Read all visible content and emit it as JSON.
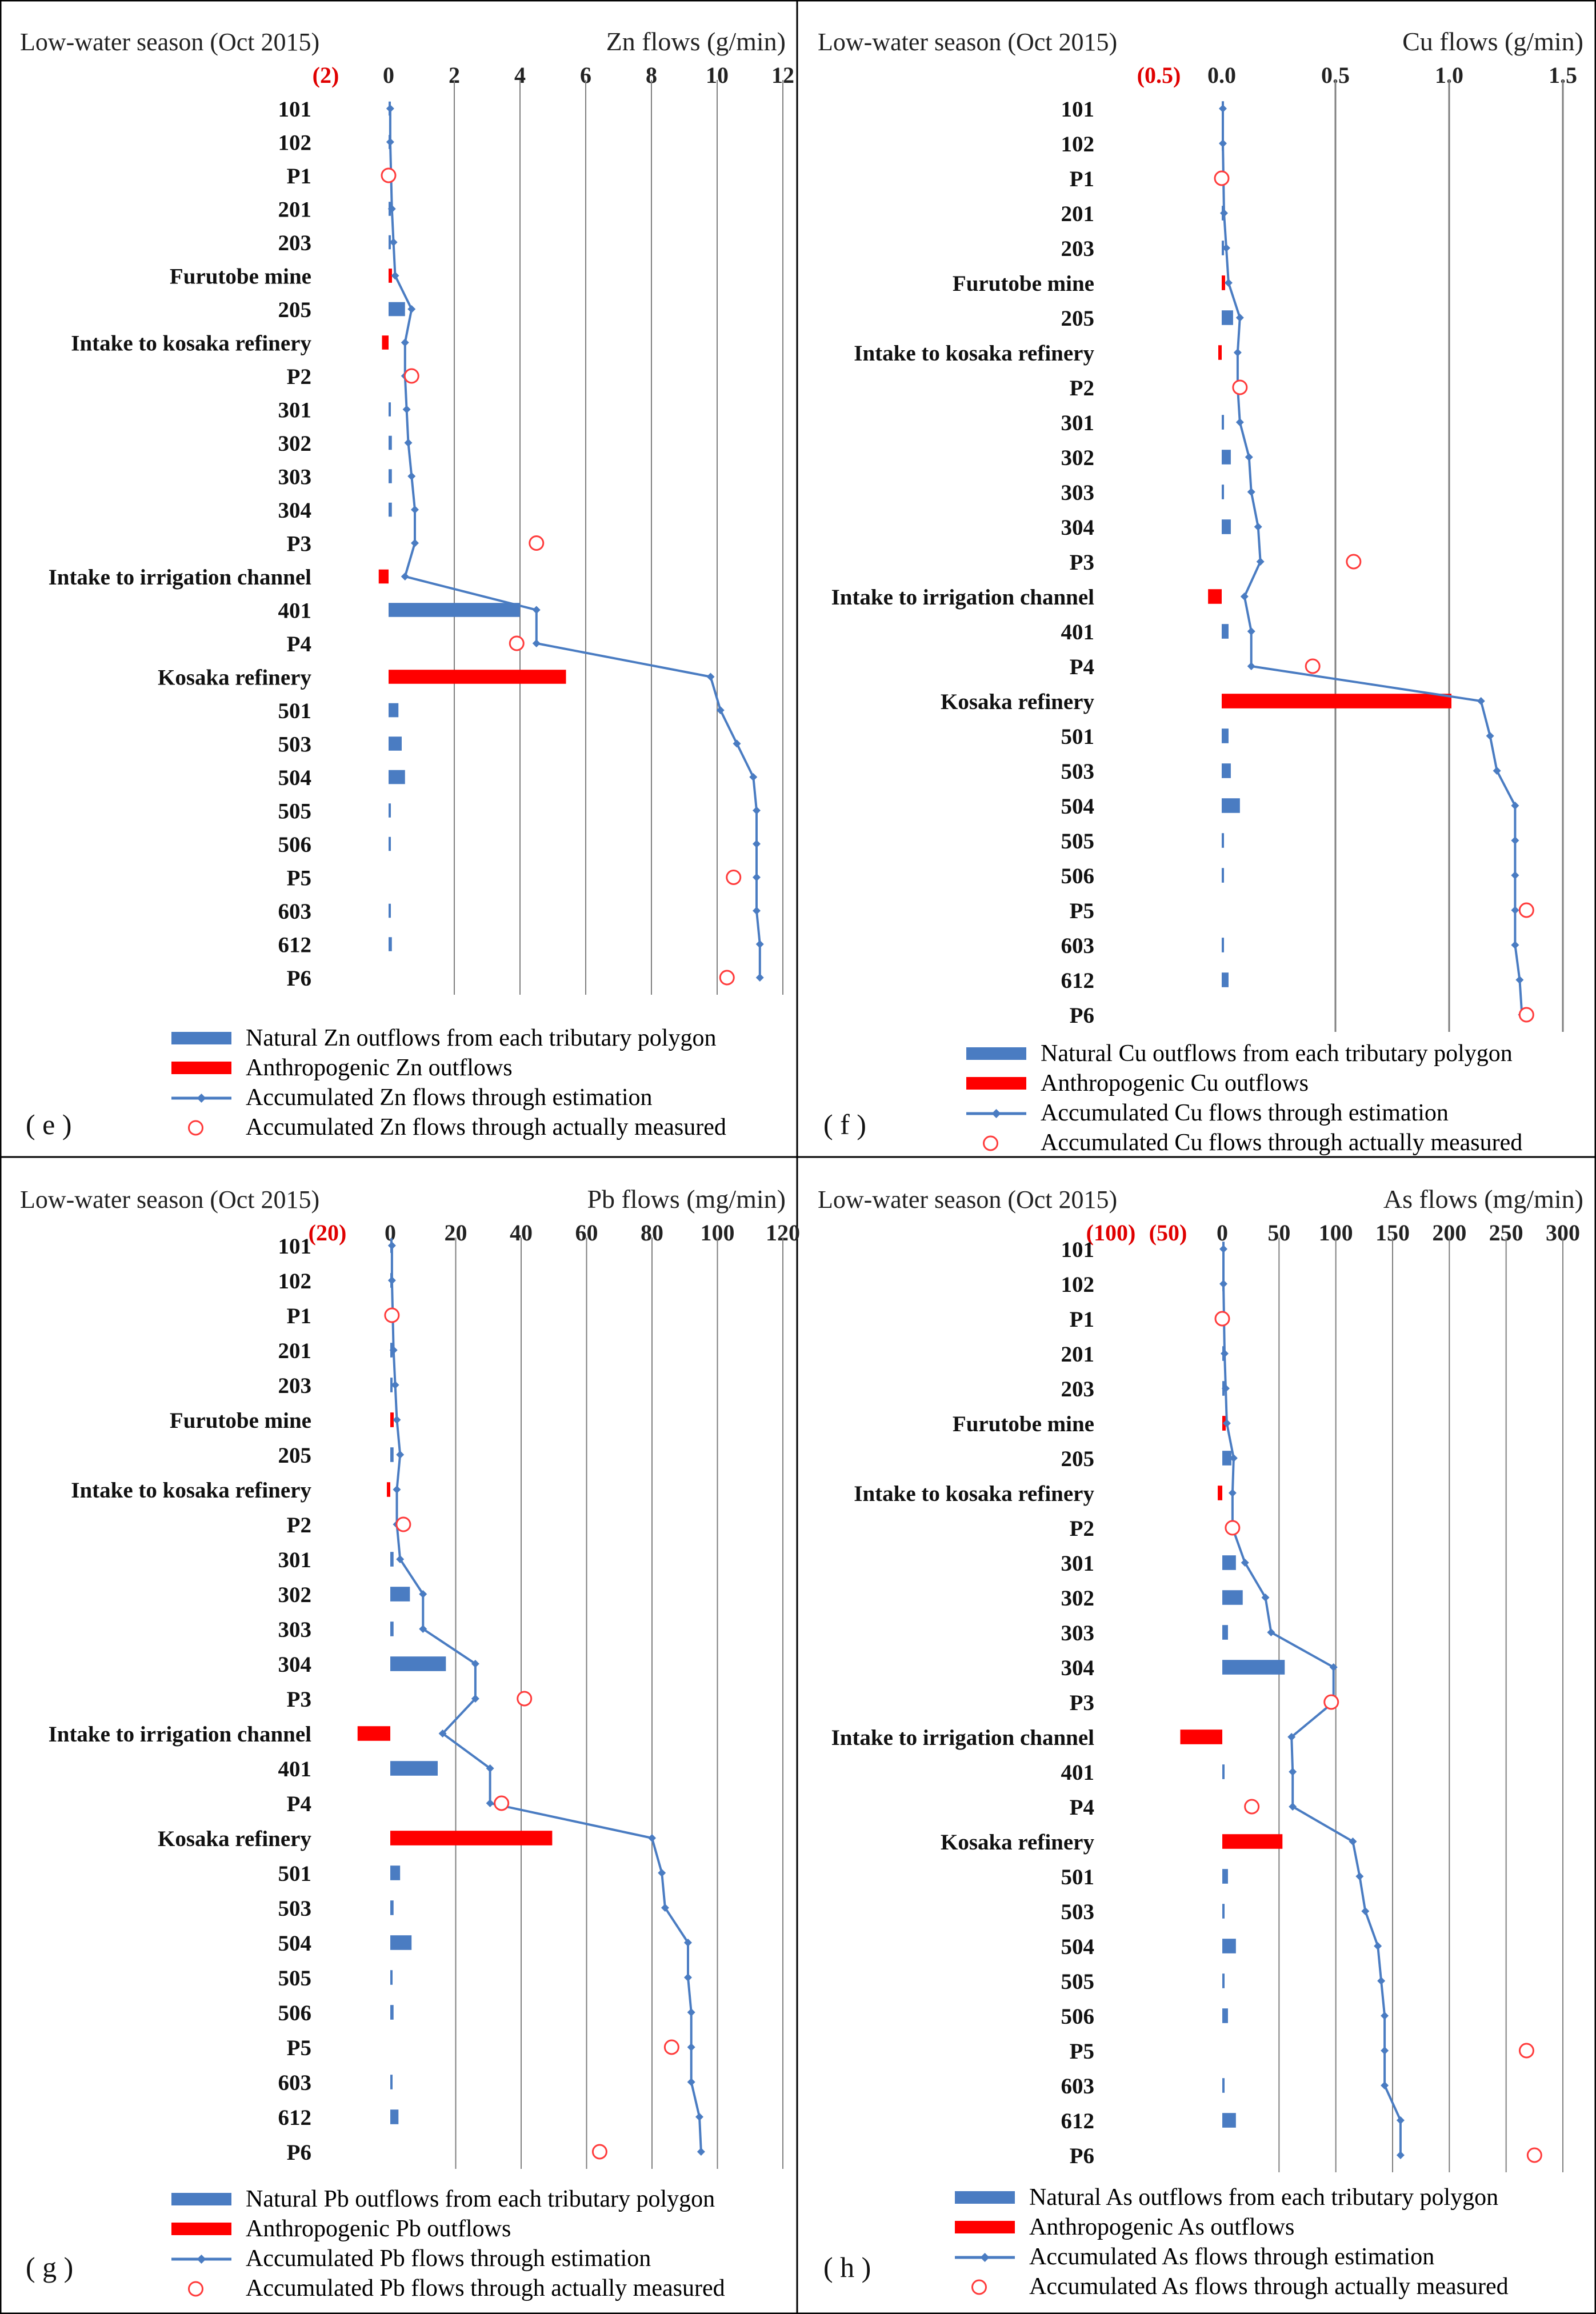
{
  "season": "Low-water season (Oct 2015)",
  "categories": [
    "101",
    "102",
    "P1",
    "201",
    "203",
    "Furutobe mine",
    "205",
    "Intake to kosaka refinery",
    "P2",
    "301",
    "302",
    "303",
    "304",
    "P3",
    "Intake to irrigation channel",
    "401",
    "P4",
    "Kosaka refinery",
    "501",
    "503",
    "504",
    "505",
    "506",
    "P5",
    "603",
    "612",
    "P6"
  ],
  "colors": {
    "natural": "#4a7cc2",
    "anthropogenic": "#ff0000",
    "accumulated": "#4a7cc2",
    "measured": "#ff3b3b",
    "grid": "#7f7f7f",
    "neg_tick": "#e00000"
  },
  "chart_data": [
    {
      "type": "bar",
      "panel_label": "( e )",
      "title": "Zn flows (g/min)",
      "season": "Low-water season (Oct 2015)",
      "xlim": [
        -2,
        12
      ],
      "neg_tick_labels": [
        {
          "value": -2,
          "label": "(2)"
        }
      ],
      "pos_ticks": [
        0,
        2,
        4,
        6,
        8,
        10,
        12
      ],
      "pos_tick_labels": [
        "0",
        "2",
        "4",
        "6",
        "8",
        "10",
        "12"
      ],
      "categories": [
        "101",
        "102",
        "P1",
        "201",
        "203",
        "Furutobe mine",
        "205",
        "Intake to kosaka refinery",
        "P2",
        "301",
        "302",
        "303",
        "304",
        "P3",
        "Intake to irrigation channel",
        "401",
        "P4",
        "Kosaka refinery",
        "501",
        "503",
        "504",
        "505",
        "506",
        "P5",
        "603",
        "612",
        "P6"
      ],
      "natural": [
        0,
        0,
        null,
        0.05,
        0.05,
        0.1,
        0.5,
        null,
        null,
        0.05,
        0.1,
        0.1,
        0.1,
        null,
        null,
        4.0,
        null,
        null,
        0.3,
        0.4,
        0.5,
        0.05,
        0.05,
        null,
        0.05,
        0.1,
        null
      ],
      "anthropogenic": [
        null,
        null,
        null,
        null,
        null,
        0.1,
        null,
        -0.2,
        null,
        null,
        null,
        null,
        null,
        null,
        -0.3,
        null,
        null,
        5.4,
        null,
        null,
        null,
        null,
        null,
        null,
        null,
        null,
        null
      ],
      "accumulated": [
        0.05,
        0.05,
        null,
        0.1,
        0.15,
        0.2,
        0.7,
        0.5,
        0.5,
        0.55,
        0.6,
        0.7,
        0.8,
        0.8,
        0.5,
        4.5,
        4.5,
        9.8,
        10.1,
        10.6,
        11.1,
        11.2,
        11.2,
        11.2,
        11.2,
        11.3,
        11.3
      ],
      "measured": [
        null,
        null,
        0.0,
        null,
        null,
        null,
        null,
        null,
        0.7,
        null,
        null,
        null,
        null,
        4.5,
        null,
        null,
        3.9,
        null,
        null,
        null,
        null,
        null,
        null,
        10.5,
        null,
        null,
        10.3
      ],
      "legend": [
        "Natural Zn outflows from each tributary polygon",
        "Anthropogenic Zn outflows",
        "Accumulated Zn flows through estimation",
        "Accumulated Zn flows through actually measured"
      ]
    },
    {
      "type": "bar",
      "panel_label": "( f )",
      "title": "Cu flows (g/min)",
      "season": "Low-water season (Oct 2015)",
      "xlim": [
        -0.5,
        1.5
      ],
      "neg_tick_labels": [
        {
          "value": -0.5,
          "label": "(0.5)"
        }
      ],
      "pos_ticks": [
        0,
        0.5,
        1.0,
        1.5
      ],
      "pos_tick_labels": [
        "0.0",
        "0.5",
        "1.0",
        "1.5"
      ],
      "categories": [
        "101",
        "102",
        "P1",
        "201",
        "203",
        "Furutobe mine",
        "205",
        "Intake to kosaka refinery",
        "P2",
        "301",
        "302",
        "303",
        "304",
        "P3",
        "Intake to irrigation channel",
        "401",
        "P4",
        "Kosaka refinery",
        "501",
        "503",
        "504",
        "505",
        "506",
        "P5",
        "603",
        "612",
        "P6"
      ],
      "natural": [
        0,
        0,
        null,
        0.005,
        0.01,
        0.01,
        0.05,
        null,
        null,
        0.01,
        0.04,
        0.01,
        0.04,
        null,
        null,
        0.03,
        null,
        null,
        0.03,
        0.04,
        0.08,
        0.005,
        0.005,
        null,
        0.005,
        0.03,
        null
      ],
      "anthropogenic": [
        null,
        null,
        null,
        null,
        null,
        0.01,
        null,
        -0.01,
        null,
        null,
        null,
        null,
        null,
        null,
        -0.06,
        null,
        null,
        1.01,
        null,
        null,
        null,
        null,
        null,
        null,
        null,
        null,
        null
      ],
      "accumulated": [
        0.005,
        0.005,
        null,
        0.01,
        0.02,
        0.03,
        0.08,
        0.07,
        0.07,
        0.08,
        0.12,
        0.13,
        0.16,
        0.17,
        0.1,
        0.13,
        0.13,
        1.14,
        1.18,
        1.21,
        1.29,
        1.29,
        1.29,
        1.29,
        1.29,
        1.31,
        1.32
      ],
      "measured": [
        null,
        null,
        0.0,
        null,
        null,
        null,
        null,
        null,
        0.08,
        null,
        null,
        null,
        null,
        0.58,
        null,
        null,
        0.4,
        null,
        null,
        null,
        null,
        null,
        null,
        1.34,
        null,
        null,
        1.34
      ],
      "legend": [
        "Natural Cu outflows from each tributary polygon",
        "Anthropogenic Cu outflows",
        "Accumulated Cu flows through estimation",
        "Accumulated Cu flows through actually measured"
      ]
    },
    {
      "type": "bar",
      "panel_label": "( g )",
      "title": "Pb flows (mg/min)",
      "season": "Low-water season (Oct 2015)",
      "xlim": [
        -20,
        120
      ],
      "neg_tick_labels": [
        {
          "value": -20,
          "label": "(20)"
        }
      ],
      "pos_ticks": [
        0,
        20,
        40,
        60,
        80,
        100,
        120
      ],
      "pos_tick_labels": [
        "0",
        "20",
        "40",
        "60",
        "80",
        "100",
        "120"
      ],
      "categories": [
        "101",
        "102",
        "P1",
        "201",
        "203",
        "Furutobe mine",
        "205",
        "Intake to kosaka refinery",
        "P2",
        "301",
        "302",
        "303",
        "304",
        "P3",
        "Intake to irrigation channel",
        "401",
        "P4",
        "Kosaka refinery",
        "501",
        "503",
        "504",
        "505",
        "506",
        "P5",
        "603",
        "612",
        "P6"
      ],
      "natural": [
        0,
        0,
        null,
        0.5,
        0.5,
        0.5,
        1.0,
        null,
        null,
        1.0,
        6.0,
        1.0,
        17.0,
        null,
        null,
        14.5,
        null,
        null,
        3.0,
        1.0,
        6.5,
        0.5,
        1.0,
        null,
        0.5,
        2.5,
        null
      ],
      "anthropogenic": [
        null,
        null,
        null,
        null,
        null,
        0.5,
        null,
        -1.0,
        null,
        null,
        null,
        null,
        null,
        null,
        -10.0,
        null,
        null,
        49.5,
        null,
        null,
        null,
        null,
        null,
        null,
        null,
        null,
        null
      ],
      "accumulated": [
        0.5,
        0.5,
        null,
        1.0,
        1.5,
        2.0,
        3.0,
        2.0,
        2.0,
        3.0,
        10.0,
        10.0,
        26.0,
        26.0,
        16.0,
        30.5,
        30.5,
        80.0,
        83.0,
        84.0,
        91.0,
        91.0,
        92.0,
        92.0,
        92.0,
        94.5,
        95.0
      ],
      "measured": [
        null,
        null,
        0.5,
        null,
        null,
        null,
        null,
        null,
        4.0,
        null,
        null,
        null,
        null,
        41.0,
        null,
        null,
        34.0,
        null,
        null,
        null,
        null,
        null,
        null,
        86.0,
        null,
        null,
        64.0
      ],
      "legend": [
        "Natural Pb outflows from each tributary polygon",
        "Anthropogenic Pb outflows",
        "Accumulated Pb flows through estimation",
        "Accumulated Pb flows through actually measured"
      ]
    },
    {
      "type": "bar",
      "panel_label": "( h )",
      "title": "As flows (mg/min)",
      "season": "Low-water season (Oct 2015)",
      "xlim": [
        -100,
        300
      ],
      "neg_tick_labels": [
        {
          "value": -100,
          "label": "(100)"
        },
        {
          "value": -50,
          "label": "(50)"
        }
      ],
      "pos_ticks": [
        0,
        50,
        100,
        150,
        200,
        250,
        300
      ],
      "pos_tick_labels": [
        "0",
        "50",
        "100",
        "150",
        "200",
        "250",
        "300"
      ],
      "categories": [
        "101",
        "102",
        "P1",
        "201",
        "203",
        "Furutobe mine",
        "205",
        "Intake to kosaka refinery",
        "P2",
        "301",
        "302",
        "303",
        "304",
        "P3",
        "Intake to irrigation channel",
        "401",
        "P4",
        "Kosaka refinery",
        "501",
        "503",
        "504",
        "505",
        "506",
        "P5",
        "603",
        "612",
        "P6"
      ],
      "natural": [
        0,
        0,
        null,
        1,
        1,
        2,
        8,
        null,
        null,
        12,
        18,
        5,
        55,
        null,
        null,
        2,
        null,
        null,
        5,
        2,
        12,
        1,
        5,
        null,
        1,
        12,
        null
      ],
      "anthropogenic": [
        null,
        null,
        null,
        null,
        null,
        1,
        null,
        -4,
        null,
        null,
        null,
        null,
        null,
        null,
        -37,
        null,
        null,
        53,
        null,
        null,
        null,
        null,
        null,
        null,
        null,
        null,
        null
      ],
      "accumulated": [
        1,
        1,
        null,
        2,
        3,
        4,
        10,
        9,
        9,
        20,
        38,
        43,
        98,
        98,
        61,
        62,
        62,
        115,
        121,
        126,
        137,
        140,
        143,
        143,
        143,
        157,
        157
      ],
      "measured": [
        null,
        null,
        0,
        null,
        null,
        null,
        null,
        null,
        9,
        null,
        null,
        null,
        null,
        96,
        null,
        null,
        26,
        null,
        null,
        null,
        null,
        null,
        null,
        268,
        null,
        null,
        275
      ],
      "legend": [
        "Natural As outflows from each tributary polygon",
        "Anthropogenic As outflows",
        "Accumulated As flows through estimation",
        "Accumulated As flows through actually measured"
      ]
    }
  ]
}
